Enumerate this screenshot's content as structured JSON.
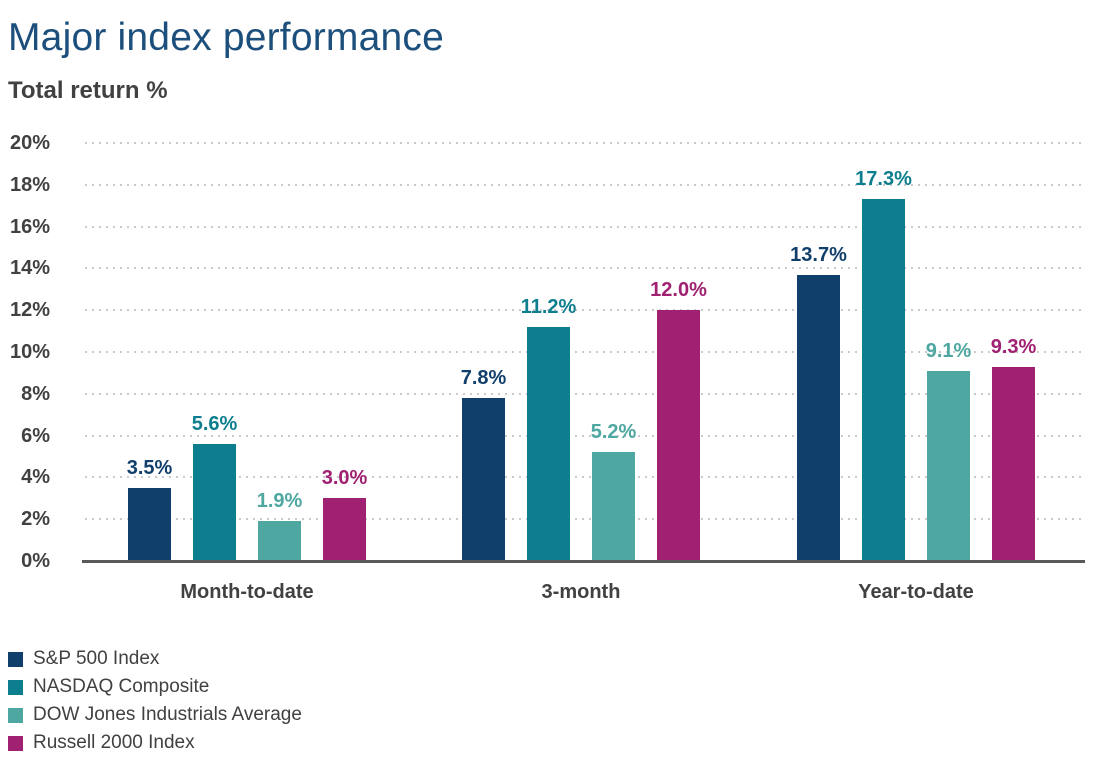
{
  "page": {
    "title": "Major index performance",
    "subtitle": "Total return %"
  },
  "colors": {
    "title_text": "#1d4f7c",
    "body_text": "#414042",
    "axis_line": "#58595b",
    "gridline": "#c9cacb",
    "background": "#ffffff"
  },
  "chart_data": {
    "type": "bar",
    "title": "Major index performance",
    "subtitle": "Total return %",
    "ylabel": "Total return %",
    "xlabel": "",
    "categories": [
      "Month-to-date",
      "3-month",
      "Year-to-date"
    ],
    "series": [
      {
        "name": "S&P 500 Index",
        "color": "#113f6b",
        "values": [
          3.5,
          7.8,
          13.7
        ]
      },
      {
        "name": "NASDAQ Composite",
        "color": "#0d7e8e",
        "values": [
          5.6,
          11.2,
          17.3
        ]
      },
      {
        "name": "DOW Jones Industrials Average",
        "color": "#4fa7a1",
        "values": [
          1.9,
          5.2,
          9.1
        ]
      },
      {
        "name": "Russell 2000 Index",
        "color": "#a02071",
        "values": [
          3.0,
          12.0,
          9.3
        ]
      }
    ],
    "value_labels": [
      [
        "3.5%",
        "7.8%",
        "13.7%"
      ],
      [
        "5.6%",
        "11.2%",
        "17.3%"
      ],
      [
        "1.9%",
        "5.2%",
        "9.1%"
      ],
      [
        "3.0%",
        "12.0%",
        "9.3%"
      ]
    ],
    "y_axis": {
      "min": 0,
      "max": 20,
      "step": 2,
      "tick_suffix": "%"
    },
    "y_tick_labels": [
      "0%",
      "2%",
      "4%",
      "6%",
      "8%",
      "10%",
      "12%",
      "14%",
      "16%",
      "18%",
      "20%"
    ],
    "grid": "horizontal dotted, on",
    "legend_position": "bottom-left"
  }
}
